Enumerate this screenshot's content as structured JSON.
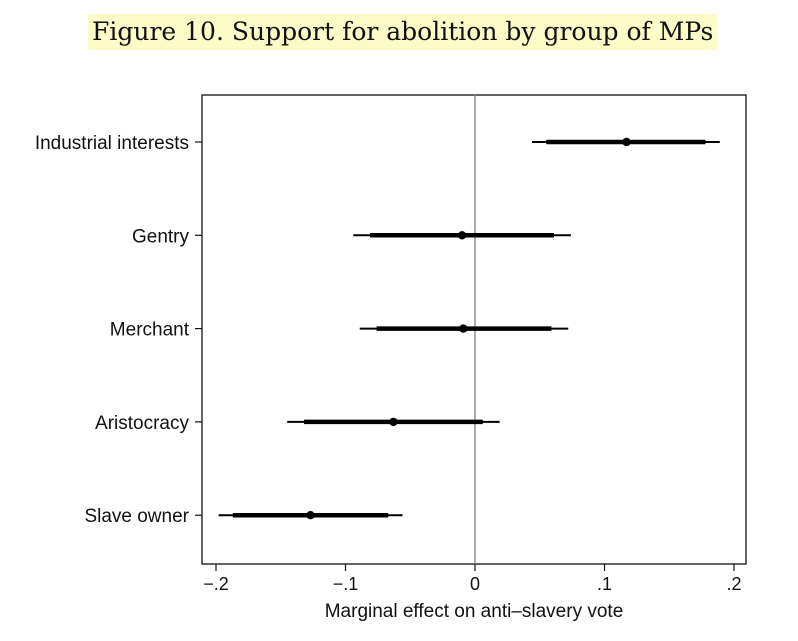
{
  "title": "Figure 10. Support for abolition by group of MPs",
  "chart_data": {
    "type": "scatter",
    "subtype": "coefficient-plot",
    "title": "Figure 10. Support for abolition by group of MPs",
    "xlabel": "Marginal effect on anti–slavery vote",
    "ylabel": "",
    "xlim": [
      -0.2,
      0.2
    ],
    "x_ticks": [
      -0.2,
      -0.1,
      0,
      0.1,
      0.2
    ],
    "x_tick_labels": [
      "−.2",
      "−.1",
      "0",
      ".1",
      ".2"
    ],
    "reference_line": 0,
    "grid": false,
    "series": [
      {
        "name": "Industrial interests",
        "estimate": 0.117,
        "ci_inner": [
          0.055,
          0.178
        ],
        "ci_outer": [
          0.044,
          0.189
        ]
      },
      {
        "name": "Gentry",
        "estimate": -0.01,
        "ci_inner": [
          -0.081,
          0.061
        ],
        "ci_outer": [
          -0.094,
          0.074
        ]
      },
      {
        "name": "Merchant",
        "estimate": -0.009,
        "ci_inner": [
          -0.076,
          0.059
        ],
        "ci_outer": [
          -0.089,
          0.072
        ]
      },
      {
        "name": "Aristocracy",
        "estimate": -0.063,
        "ci_inner": [
          -0.132,
          0.006
        ],
        "ci_outer": [
          -0.145,
          0.019
        ]
      },
      {
        "name": "Slave owner",
        "estimate": -0.127,
        "ci_inner": [
          -0.187,
          -0.067
        ],
        "ci_outer": [
          -0.198,
          -0.056
        ]
      }
    ]
  }
}
